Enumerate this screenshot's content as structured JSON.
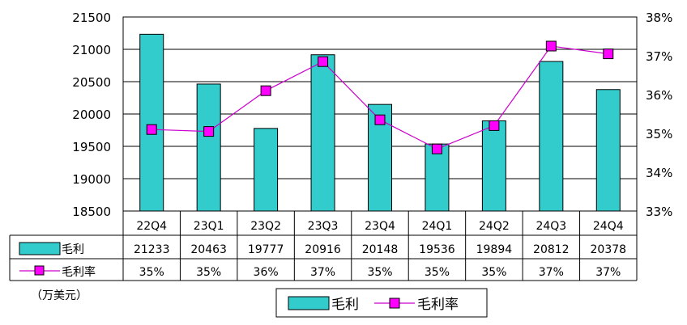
{
  "chart_data": {
    "type": "bar",
    "categories": [
      "22Q4",
      "23Q1",
      "23Q2",
      "23Q3",
      "23Q4",
      "24Q1",
      "24Q2",
      "24Q3",
      "24Q4"
    ],
    "series": [
      {
        "name": "毛利",
        "type": "bar",
        "axis": "left",
        "color": "#33CCCC",
        "values": [
          21233,
          20463,
          19777,
          20916,
          20148,
          19536,
          19894,
          20812,
          20378
        ],
        "labels": [
          "21233",
          "20463",
          "19777",
          "20916",
          "20148",
          "19536",
          "19894",
          "20812",
          "20378"
        ]
      },
      {
        "name": "毛利率",
        "type": "line",
        "axis": "right",
        "color": "#CC00CC",
        "marker_fill": "#FF00FF",
        "values": [
          35.1,
          35.05,
          36.1,
          36.85,
          35.35,
          34.6,
          35.2,
          37.25,
          37.05
        ],
        "labels": [
          "35%",
          "35%",
          "36%",
          "37%",
          "35%",
          "35%",
          "35%",
          "37%",
          "37%"
        ]
      }
    ],
    "y_left": {
      "min": 18500,
      "max": 21500,
      "ticks": [
        "18500",
        "19000",
        "19500",
        "20000",
        "20500",
        "21000",
        "21500"
      ]
    },
    "y_right": {
      "min": 33,
      "max": 38,
      "ticks": [
        "33%",
        "34%",
        "35%",
        "36%",
        "37%",
        "38%"
      ]
    },
    "unit_note": "（万美元）",
    "grid": true,
    "data_table": true,
    "legend_position": "bottom-center"
  }
}
